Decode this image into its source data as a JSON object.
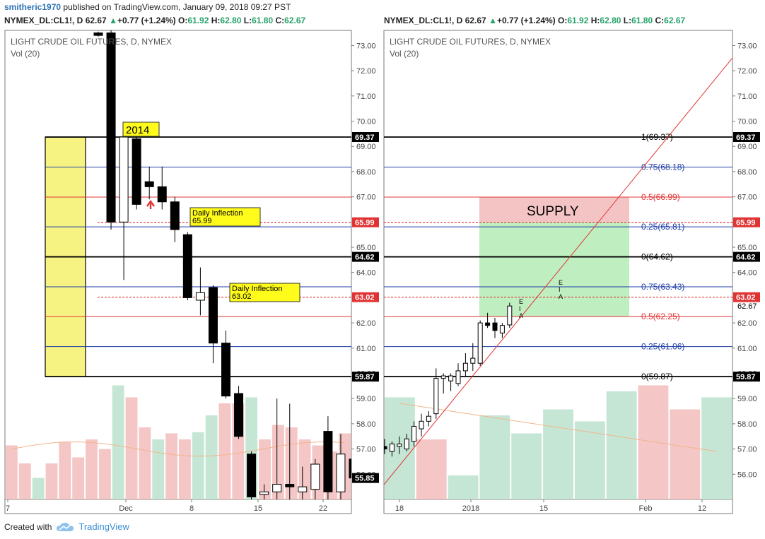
{
  "header": {
    "user": "smitheric1970",
    "published": "published on TradingView.com, January 09, 2018 09:27 PST"
  },
  "symbol_line": {
    "symbol": "NYMEX_DL:CL1!, D",
    "last": "62.67",
    "change": "+0.77 (+1.24%)",
    "o_label": "O:",
    "o": "61.92",
    "h_label": "H:",
    "h": "62.80",
    "l_label": "L:",
    "l": "61.80",
    "c_label": "C:",
    "c": "62.67"
  },
  "footer": {
    "created": "Created with",
    "brand": "TradingView",
    "logo_icon": "tradingview-cloud-icon"
  },
  "colors": {
    "up": "#26a269",
    "red": "#e03434",
    "blue": "#1f3fa6",
    "yellow": "#f6f383",
    "supply": "#f4c4c4",
    "demand": "#bfeec0"
  },
  "chart_data": [
    {
      "type": "candlestick",
      "title": "LIGHT CRUDE OIL FUTURES, D, NYMEX",
      "subtitle": "Vol (20)",
      "ylim": [
        55,
        73.6
      ],
      "y_ticks": [
        56,
        57,
        58,
        59,
        60,
        61,
        62,
        63,
        64,
        65,
        66,
        67,
        68,
        69,
        70,
        71,
        72,
        73
      ],
      "x_ticks": [
        "7",
        "Dec",
        "8",
        "15",
        "22"
      ],
      "hlines": [
        {
          "y": 69.37,
          "color": "black",
          "label": "69.37"
        },
        {
          "y": 68.18,
          "color": "blue"
        },
        {
          "y": 66.99,
          "color": "red"
        },
        {
          "y": 65.81,
          "color": "blue"
        },
        {
          "y": 64.62,
          "color": "black",
          "label": "64.62"
        },
        {
          "y": 63.43,
          "color": "blue"
        },
        {
          "y": 62.25,
          "color": "red"
        },
        {
          "y": 61.06,
          "color": "blue"
        },
        {
          "y": 59.87,
          "color": "black",
          "label": "59.87"
        }
      ],
      "dashed_lines": [
        {
          "y": 65.99,
          "label": "65.99"
        },
        {
          "y": 63.02,
          "label": "63.02"
        }
      ],
      "last_price_label": "55.85",
      "annotations": [
        {
          "text": "2014",
          "type": "callout"
        },
        {
          "text": "Daily Inflection",
          "value": "65.99"
        },
        {
          "text": "Daily Inflection",
          "value": "63.02"
        }
      ],
      "candles": [
        {
          "o": 73.5,
          "h": 73.55,
          "l": 73.35,
          "c": 73.4
        },
        {
          "o": 73.5,
          "h": 73.6,
          "l": 65.7,
          "c": 66.0
        },
        {
          "o": 66.0,
          "h": 69.37,
          "l": 63.7,
          "c": 69.37
        },
        {
          "o": 69.3,
          "h": 69.37,
          "l": 66.5,
          "c": 66.7
        },
        {
          "o": 67.6,
          "h": 68.2,
          "l": 66.9,
          "c": 67.4
        },
        {
          "o": 67.4,
          "h": 68.2,
          "l": 66.5,
          "c": 66.8
        },
        {
          "o": 66.8,
          "h": 67.0,
          "l": 65.2,
          "c": 65.7
        },
        {
          "o": 65.5,
          "h": 65.6,
          "l": 62.9,
          "c": 63.0
        },
        {
          "o": 62.9,
          "h": 64.2,
          "l": 62.3,
          "c": 63.2
        },
        {
          "o": 63.4,
          "h": 63.5,
          "l": 60.4,
          "c": 61.2
        },
        {
          "o": 61.2,
          "h": 61.7,
          "l": 59.0,
          "c": 59.1
        },
        {
          "o": 59.2,
          "h": 59.5,
          "l": 57.4,
          "c": 57.5
        },
        {
          "o": 56.8,
          "h": 56.9,
          "l": 55.0,
          "c": 55.1
        },
        {
          "o": 55.2,
          "h": 55.6,
          "l": 55.0,
          "c": 55.3
        },
        {
          "o": 55.3,
          "h": 59.0,
          "l": 55.0,
          "c": 55.6
        },
        {
          "o": 55.6,
          "h": 58.8,
          "l": 55.0,
          "c": 55.5
        },
        {
          "o": 55.3,
          "h": 56.3,
          "l": 55.0,
          "c": 55.5
        },
        {
          "o": 55.4,
          "h": 56.6,
          "l": 55.0,
          "c": 56.4
        },
        {
          "o": 57.7,
          "h": 58.3,
          "l": 55.0,
          "c": 55.3
        },
        {
          "o": 55.3,
          "h": 57.6,
          "l": 55.0,
          "c": 56.8
        },
        {
          "o": 56.6,
          "h": 57.2,
          "l": 55.6,
          "c": 55.85
        }
      ],
      "volume": [
        0.45,
        0.3,
        0.18,
        0.3,
        0.48,
        0.35,
        0.5,
        0.42,
        0.95,
        0.85,
        0.6,
        0.5,
        0.55,
        0.5,
        0.56,
        0.7,
        0.8,
        0.8,
        0.85,
        0.5,
        0.62,
        0.6,
        0.5,
        0.45,
        0.4,
        0.55
      ]
    },
    {
      "type": "candlestick",
      "title": "LIGHT CRUDE OIL FUTURES, D, NYMEX",
      "subtitle": "Vol (20)",
      "ylim": [
        55,
        73.6
      ],
      "y_ticks": [
        56,
        57,
        58,
        59,
        60,
        61,
        62,
        63,
        64,
        65,
        66,
        67,
        68,
        69,
        70,
        71,
        72,
        73
      ],
      "x_ticks": [
        "18",
        "2018",
        "15",
        "Feb",
        "12"
      ],
      "hlines": [
        {
          "y": 69.37,
          "color": "black",
          "label": "69.37"
        },
        {
          "y": 68.18,
          "color": "blue"
        },
        {
          "y": 66.99,
          "color": "red"
        },
        {
          "y": 65.81,
          "color": "blue"
        },
        {
          "y": 64.62,
          "color": "black",
          "label": "64.62"
        },
        {
          "y": 63.43,
          "color": "blue"
        },
        {
          "y": 62.25,
          "color": "red"
        },
        {
          "y": 61.06,
          "color": "blue"
        },
        {
          "y": 59.87,
          "color": "black",
          "label": "59.87"
        }
      ],
      "dashed_lines": [
        {
          "y": 65.99,
          "label": "65.99"
        },
        {
          "y": 63.02,
          "label": "63.02"
        }
      ],
      "last_price_label": "62.67",
      "fib_labels": [
        {
          "text": "1(69.37)",
          "y": 69.37,
          "color": "black"
        },
        {
          "text": "0.75(68.18)",
          "y": 68.18,
          "color": "blue"
        },
        {
          "text": "0.5(66.99)",
          "y": 66.99,
          "color": "red"
        },
        {
          "text": "0.25(65.81)",
          "y": 65.81,
          "color": "blue"
        },
        {
          "text": "0(64.62)",
          "y": 64.62,
          "color": "black"
        },
        {
          "text": "0.75(63.43)",
          "y": 63.43,
          "color": "blue"
        },
        {
          "text": "0.5(62.25)",
          "y": 62.25,
          "color": "red"
        },
        {
          "text": "0.25(61.06)",
          "y": 61.06,
          "color": "blue"
        },
        {
          "text": "0(59.87)",
          "y": 59.87,
          "color": "black"
        }
      ],
      "zones": [
        {
          "label": "SUPPLY",
          "from": 65.99,
          "to": 66.99,
          "color": "supply"
        },
        {
          "label": "",
          "from": 62.25,
          "to": 65.99,
          "color": "demand"
        }
      ],
      "eia_labels": [
        "E",
        "I",
        "A"
      ],
      "candles": [
        {
          "o": 57.1,
          "h": 57.4,
          "l": 56.8,
          "c": 57.0
        },
        {
          "o": 56.9,
          "h": 57.3,
          "l": 56.7,
          "c": 57.2
        },
        {
          "o": 57.1,
          "h": 57.5,
          "l": 56.8,
          "c": 57.2
        },
        {
          "o": 57.0,
          "h": 57.6,
          "l": 56.9,
          "c": 57.4
        },
        {
          "o": 57.3,
          "h": 58.1,
          "l": 57.1,
          "c": 57.9
        },
        {
          "o": 57.8,
          "h": 58.4,
          "l": 57.5,
          "c": 58.1
        },
        {
          "o": 58.1,
          "h": 58.5,
          "l": 57.9,
          "c": 58.3
        },
        {
          "o": 58.4,
          "h": 60.2,
          "l": 58.2,
          "c": 59.8
        },
        {
          "o": 59.8,
          "h": 60.0,
          "l": 59.2,
          "c": 59.9
        },
        {
          "o": 59.7,
          "h": 60.0,
          "l": 59.3,
          "c": 59.9
        },
        {
          "o": 59.6,
          "h": 60.4,
          "l": 59.5,
          "c": 60.1
        },
        {
          "o": 60.1,
          "h": 60.8,
          "l": 59.9,
          "c": 60.4
        },
        {
          "o": 60.4,
          "h": 61.2,
          "l": 60.1,
          "c": 60.6
        },
        {
          "o": 60.4,
          "h": 62.1,
          "l": 60.3,
          "c": 62.0
        },
        {
          "o": 62.0,
          "h": 62.4,
          "l": 61.8,
          "c": 61.9
        },
        {
          "o": 62.0,
          "h": 62.2,
          "l": 61.4,
          "c": 61.7
        },
        {
          "o": 61.6,
          "h": 62.0,
          "l": 61.4,
          "c": 61.9
        },
        {
          "o": 61.92,
          "h": 62.8,
          "l": 61.8,
          "c": 62.67
        }
      ],
      "volume": [
        0.85,
        0.5,
        0.2,
        0.7,
        0.55,
        0.75,
        0.65,
        0.9,
        0.95,
        0.75,
        0.85
      ]
    }
  ]
}
